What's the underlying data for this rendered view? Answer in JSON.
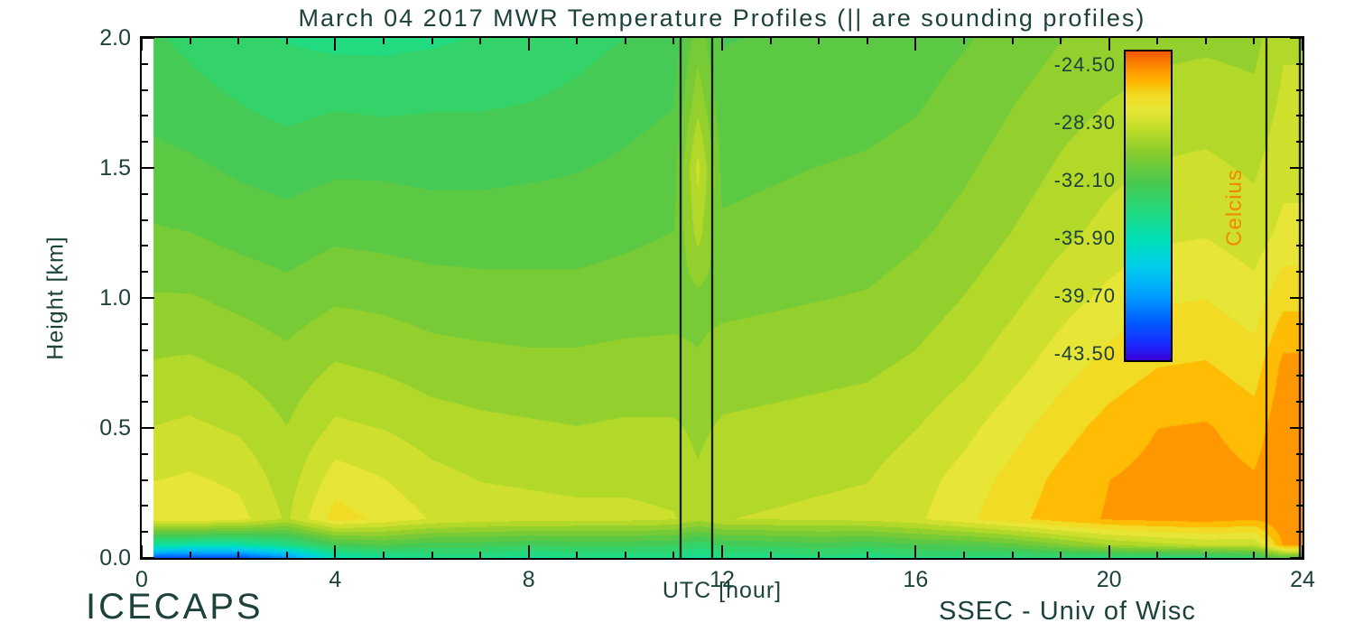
{
  "title": "March 04 2017 MWR Temperature Profiles (|| are sounding profiles)",
  "branding": {
    "bottom_left": "ICECAPS",
    "bottom_right": "SSEC - Univ of Wisc"
  },
  "axes": {
    "x": {
      "title": "UTC [hour]",
      "min": 0,
      "max": 24,
      "major_tick_values": [
        0,
        4,
        8,
        12,
        16,
        20,
        24
      ],
      "major_tick_labels": [
        "0",
        "4",
        "8",
        "12",
        "16",
        "20",
        "24"
      ],
      "minor_tick_step": 1
    },
    "y": {
      "title": "Height [km]",
      "min": 0,
      "max": 2,
      "major_tick_values": [
        0,
        0.5,
        1,
        1.5,
        2
      ],
      "major_tick_labels": [
        "0.0",
        "0.5",
        "1.0",
        "1.5",
        "2.0"
      ],
      "minor_tick_step": 0.1
    }
  },
  "colorbar": {
    "title": "Celcius",
    "tick_labels": [
      "-24.50",
      "-28.30",
      "-32.10",
      "-35.90",
      "-39.70",
      "-43.50"
    ],
    "tick_values": [
      -24.5,
      -28.3,
      -32.1,
      -35.9,
      -39.7,
      -43.5
    ],
    "min": -43.9,
    "max": -23.6
  },
  "colors": {
    "background": "#ffffff",
    "text": "#1d423c",
    "axis": "#000000",
    "colorbar_title_text": "#f08800",
    "colormap_stops": [
      [
        0.0,
        "#3c00d8"
      ],
      [
        0.05,
        "#1a28ff"
      ],
      [
        0.12,
        "#005aff"
      ],
      [
        0.21,
        "#00a0ff"
      ],
      [
        0.3,
        "#00ccee"
      ],
      [
        0.39,
        "#00e0b8"
      ],
      [
        0.48,
        "#22da7e"
      ],
      [
        0.58,
        "#4cc84c"
      ],
      [
        0.67,
        "#86cc2e"
      ],
      [
        0.75,
        "#c2dc28"
      ],
      [
        0.81,
        "#e6e636"
      ],
      [
        0.86,
        "#f2da22"
      ],
      [
        0.9,
        "#ffb800"
      ],
      [
        0.945,
        "#ff9000"
      ],
      [
        1.0,
        "#f05800"
      ]
    ]
  },
  "chart_data": {
    "type": "heatmap",
    "title": "March 04 2017 MWR Temperature Profiles (|| are sounding profiles)",
    "xlabel": "UTC [hour]",
    "ylabel": "Height [km]",
    "value_units": "Celcius",
    "xlim": [
      0,
      24
    ],
    "ylim": [
      0,
      2
    ],
    "value_range": [
      -43.9,
      -23.6
    ],
    "legend": "colorbar right, overlaid inside plot",
    "x_hours": [
      0,
      1,
      2,
      3,
      4,
      5,
      6,
      7,
      8,
      9,
      10,
      11,
      11.5,
      12,
      13,
      14,
      15,
      16,
      17,
      18,
      19,
      20,
      21,
      22,
      23,
      23.6,
      24
    ],
    "y_km": [
      0,
      0.05,
      0.15,
      0.3,
      0.5,
      0.75,
      1.0,
      1.25,
      1.5,
      1.75,
      2.0
    ],
    "row_order": "bottom-to-top (temperature_c[i] corresponds to y_km[i])",
    "temperature_c": [
      [
        -41.5,
        -42,
        -42,
        -40,
        -36,
        -35,
        -34.5,
        -34.5,
        -35,
        -34.5,
        -34.5,
        -34.5,
        -35,
        -34.5,
        -34.5,
        -34,
        -34.5,
        -34,
        -34,
        -34,
        -34,
        -34,
        -34,
        -34,
        -33.5,
        -31.5,
        -31.5
      ],
      [
        -35,
        -35.5,
        -35.5,
        -34.5,
        -32.5,
        -32,
        -32.5,
        -32.5,
        -32.8,
        -32.6,
        -32.6,
        -32.8,
        -33.5,
        -32.8,
        -32.6,
        -32.4,
        -32.6,
        -32.2,
        -32,
        -31.5,
        -30.5,
        -29.5,
        -29,
        -28.6,
        -28.6,
        -25.2,
        -25.2
      ],
      [
        -27.4,
        -27.2,
        -27.5,
        -28.8,
        -26.6,
        -27.2,
        -27.9,
        -28.2,
        -28.3,
        -28.4,
        -28.4,
        -28.6,
        -29.2,
        -28.7,
        -28.6,
        -28.5,
        -28.4,
        -28,
        -27.2,
        -26.4,
        -25.7,
        -25.2,
        -25,
        -24.9,
        -25.2,
        -24.6,
        -24.6
      ],
      [
        -27.9,
        -27.7,
        -28,
        -29.1,
        -27.4,
        -27.8,
        -28.4,
        -28.7,
        -28.8,
        -28.9,
        -28.9,
        -29,
        -29.4,
        -29,
        -28.9,
        -28.8,
        -28.7,
        -28.2,
        -27.5,
        -26.7,
        -25.9,
        -25.3,
        -25,
        -24.9,
        -25.2,
        -24.6,
        -24.6
      ],
      [
        -28.7,
        -28.5,
        -28.8,
        -29.5,
        -28.5,
        -28.7,
        -29.1,
        -29.3,
        -29.4,
        -29.5,
        -29.4,
        -29.4,
        -29.7,
        -29.4,
        -29.3,
        -29.2,
        -29.1,
        -28.7,
        -28.1,
        -27.3,
        -26.5,
        -25.8,
        -25.3,
        -25.2,
        -25.7,
        -24.7,
        -24.7
      ],
      [
        -29.5,
        -29.4,
        -29.7,
        -30.1,
        -29.5,
        -29.7,
        -30,
        -30.1,
        -30.2,
        -30.2,
        -30.1,
        -30.1,
        -30.3,
        -30,
        -29.9,
        -29.8,
        -29.7,
        -29.4,
        -28.9,
        -28.2,
        -27.4,
        -26.7,
        -26.2,
        -26.1,
        -26.6,
        -25.1,
        -25.1
      ],
      [
        -30.3,
        -30.3,
        -30.6,
        -30.9,
        -30.5,
        -30.6,
        -30.8,
        -30.9,
        -30.9,
        -30.9,
        -30.8,
        -30.7,
        -30.6,
        -30.6,
        -30.5,
        -30.4,
        -30.3,
        -30,
        -29.5,
        -28.9,
        -28.2,
        -27.6,
        -27.1,
        -27,
        -27.5,
        -26.4,
        -26.4
      ],
      [
        -31.1,
        -31.2,
        -31.5,
        -31.7,
        -31.4,
        -31.5,
        -31.6,
        -31.6,
        -31.6,
        -31.6,
        -31.4,
        -31.2,
        -29.2,
        -31.1,
        -31,
        -30.9,
        -30.8,
        -30.5,
        -30.1,
        -29.5,
        -28.9,
        -28.4,
        -28,
        -27.9,
        -28.3,
        -27.6,
        -27.6
      ],
      [
        -31.7,
        -31.9,
        -32.2,
        -32.4,
        -32.2,
        -32.2,
        -32.3,
        -32.3,
        -32.2,
        -32.1,
        -31.9,
        -31.6,
        -28.4,
        -31.4,
        -31.3,
        -31.2,
        -31.1,
        -30.9,
        -30.5,
        -30,
        -29.4,
        -28.9,
        -28.6,
        -28.5,
        -28.8,
        -28.1,
        -28.1
      ],
      [
        -32.3,
        -32.6,
        -32.9,
        -33.2,
        -33,
        -33.1,
        -33,
        -33,
        -32.9,
        -32.7,
        -32.4,
        -32.1,
        -29.8,
        -31.8,
        -31.7,
        -31.6,
        -31.5,
        -31.3,
        -30.9,
        -30.4,
        -29.9,
        -29.5,
        -29.2,
        -29.1,
        -29.3,
        -28.5,
        -28.5
      ],
      [
        -32.7,
        -33.1,
        -33.5,
        -33.8,
        -34,
        -34,
        -33.9,
        -33.7,
        -33.5,
        -33.2,
        -32.9,
        -32.5,
        -30.8,
        -32.1,
        -32,
        -31.9,
        -31.8,
        -31.6,
        -31.3,
        -30.9,
        -30.4,
        -30.1,
        -29.8,
        -29.7,
        -29.8,
        -28.8,
        -28.8
      ]
    ],
    "sounding_profile_times_utc": [
      11.15,
      11.8,
      23.25,
      23.94
    ],
    "data_start_utc": 0.25,
    "contour_levels": 24
  }
}
